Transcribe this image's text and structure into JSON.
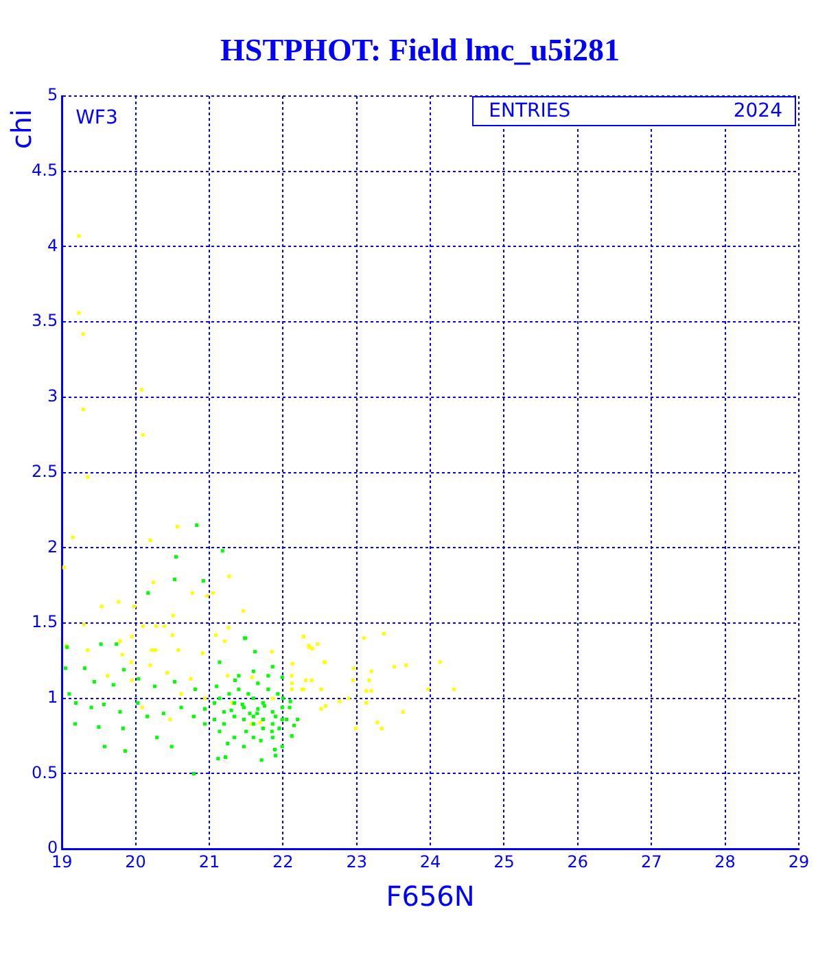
{
  "chart_data": {
    "type": "scatter",
    "title": "HSTPHOT: Field lmc_u5i281",
    "xlabel": "F656N",
    "ylabel": "chi",
    "annotations": [
      "WF3",
      "ENTRIES",
      "2024"
    ],
    "xlim": [
      19,
      29
    ],
    "xticks": [
      19,
      20,
      21,
      22,
      23,
      24,
      25,
      26,
      27,
      28,
      29
    ],
    "ylim": [
      0,
      5
    ],
    "yticks": [
      0,
      0.5,
      1,
      1.5,
      2,
      2.5,
      3,
      3.5,
      4,
      4.5,
      5
    ],
    "grid": true,
    "marker": "square",
    "legend": false,
    "series": [
      {
        "color": "#00ff00",
        "x": [
          20.83,
          20.55,
          21.18,
          20.17,
          20.53,
          20.92,
          21.48,
          21.62,
          19.07,
          19.53,
          19.74,
          19.05,
          19.31,
          19.84,
          19.44,
          19.7,
          20.04,
          20.26,
          20.53,
          20.81,
          21.14,
          21.4,
          21.86,
          21.99,
          19.19,
          19.4,
          19.57,
          19.79,
          20.03,
          20.16,
          20.38,
          20.62,
          20.79,
          20.94,
          21.07,
          21.2,
          21.34,
          21.47,
          21.6,
          21.73,
          21.86,
          21.99,
          22.05,
          19.18,
          19.5,
          19.83,
          19.1,
          20.29,
          20.49,
          19.58,
          19.86,
          20.79,
          21.14,
          21.34,
          21.47,
          21.6,
          21.73,
          21.86,
          21.99,
          21.89,
          21.71,
          21.22,
          21.12,
          22.12,
          22.2,
          22.09,
          20.94,
          21.07,
          21.2,
          21.34,
          21.47,
          21.6,
          21.73,
          21.86,
          21.99,
          21.6,
          21.66,
          21.53,
          21.4,
          21.27,
          21.14,
          21.8,
          21.93,
          21.66,
          21.49,
          21.55,
          21.75,
          21.95,
          21.3,
          21.5,
          21.7,
          21.9,
          21.45,
          21.65,
          21.85,
          21.35,
          21.6,
          21.8,
          22.0,
          21.1,
          22.15,
          22.1,
          21.25,
          21.9
        ],
        "values": [
          2.15,
          1.94,
          1.98,
          1.7,
          1.79,
          1.78,
          1.4,
          1.31,
          1.34,
          1.36,
          1.36,
          1.2,
          1.2,
          1.19,
          1.11,
          1.09,
          1.13,
          1.08,
          1.11,
          1.06,
          1.24,
          1.15,
          1.21,
          1.14,
          0.97,
          0.94,
          0.96,
          0.91,
          0.97,
          0.88,
          0.9,
          0.94,
          0.88,
          0.93,
          0.97,
          0.91,
          0.97,
          0.94,
          1.0,
          0.97,
          0.91,
          0.94,
          0.86,
          0.83,
          0.81,
          0.8,
          1.03,
          0.74,
          0.68,
          0.68,
          0.65,
          0.5,
          0.78,
          0.74,
          0.68,
          0.74,
          0.8,
          0.74,
          0.68,
          0.66,
          0.59,
          0.61,
          0.6,
          0.75,
          0.86,
          0.94,
          0.83,
          0.86,
          0.83,
          0.88,
          0.86,
          0.88,
          0.86,
          0.83,
          0.86,
          0.83,
          0.93,
          1.03,
          1.06,
          1.03,
          1.0,
          1.06,
          1.03,
          1.1,
          1.4,
          0.9,
          0.95,
          0.8,
          0.92,
          0.78,
          0.72,
          0.88,
          0.96,
          0.9,
          0.78,
          1.12,
          1.18,
          1.15,
          1.0,
          1.08,
          0.82,
          0.98,
          0.7,
          0.62
        ]
      },
      {
        "color": "#ffff00",
        "x": [
          19.23,
          19.23,
          19.29,
          20.08,
          19.29,
          20.1,
          19.35,
          22.28,
          23.1,
          24.13,
          24.32,
          23.28,
          23.34,
          22.99,
          23.51,
          23.67,
          23.2,
          23.17,
          22.96,
          22.95,
          23.13,
          23.2,
          22.89,
          22.77,
          23.13,
          22.52,
          22.58,
          22.39,
          22.31,
          22.35,
          22.4,
          22.47,
          22.26,
          22.12,
          22.12,
          22.13,
          22.56,
          23.97,
          23.63,
          23.37,
          20.57,
          19.15,
          20.2,
          19.03,
          21.27,
          20.24,
          19.54,
          19.77,
          19.98,
          20.51,
          20.77,
          20.97,
          21.05,
          21.46,
          19.3,
          20.1,
          20.28,
          20.39,
          20.5,
          21.09,
          21.26,
          19.79,
          19.95,
          20.22,
          20.58,
          20.91,
          21.21,
          21.85,
          22.28,
          22.36,
          22.57,
          19.94,
          20.2,
          19.62,
          19.95,
          20.43,
          20.75,
          21.25,
          21.58,
          22.12,
          22.28,
          22.52,
          20.62,
          21.31,
          21.57,
          21.69,
          20.47,
          20.09,
          20.94,
          21.86,
          19.06,
          19.35,
          19.82,
          20.27
        ],
        "values": [
          4.07,
          3.56,
          3.42,
          3.05,
          2.92,
          2.75,
          2.47,
          1.41,
          1.4,
          1.24,
          1.06,
          0.84,
          0.8,
          0.8,
          1.21,
          1.22,
          1.18,
          1.12,
          1.2,
          1.12,
          1.05,
          1.05,
          1.0,
          0.98,
          0.97,
          0.93,
          0.95,
          1.12,
          1.12,
          1.35,
          1.33,
          1.36,
          1.06,
          1.06,
          1.1,
          1.23,
          1.24,
          1.06,
          0.91,
          1.43,
          2.14,
          2.07,
          2.05,
          1.87,
          1.81,
          1.77,
          1.61,
          1.64,
          1.61,
          1.55,
          1.7,
          1.68,
          1.7,
          1.58,
          1.49,
          1.48,
          1.48,
          1.48,
          1.42,
          1.42,
          1.47,
          1.38,
          1.41,
          1.32,
          1.32,
          1.3,
          1.38,
          1.31,
          1.41,
          1.34,
          1.24,
          1.24,
          1.22,
          1.15,
          1.12,
          1.17,
          1.13,
          1.15,
          1.14,
          1.15,
          1.06,
          1.06,
          1.03,
          0.97,
          0.83,
          0.84,
          0.86,
          0.94,
          1.0,
          1.0,
          1.35,
          1.32,
          1.29,
          1.32
        ]
      }
    ]
  }
}
